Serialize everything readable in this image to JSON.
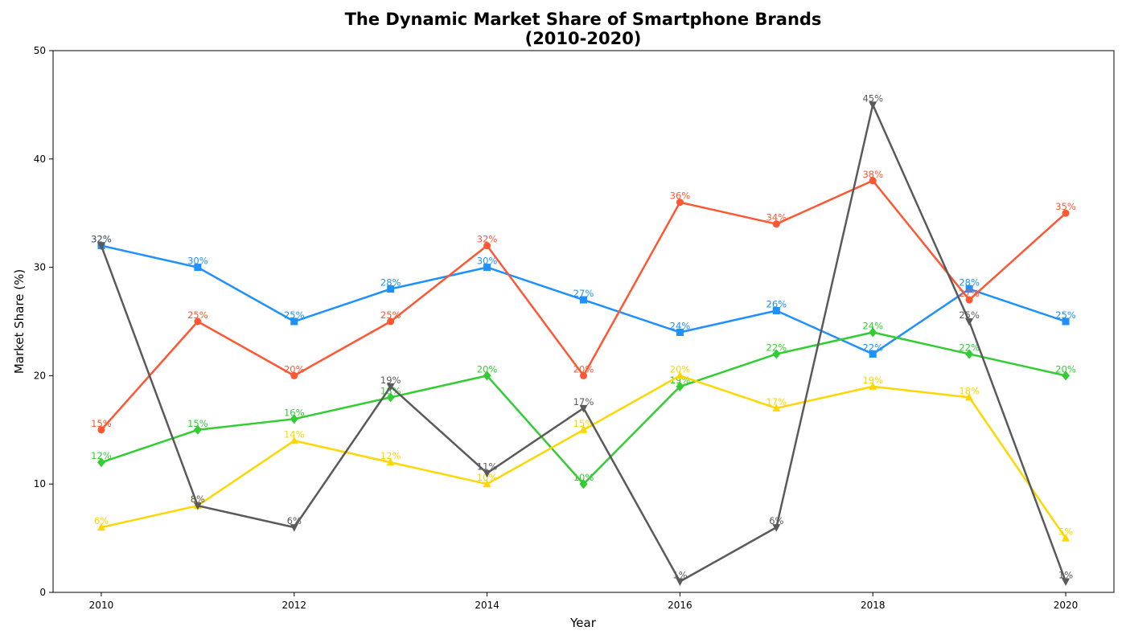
{
  "chart_data": {
    "type": "line",
    "title": "The Dynamic Market Share of Smartphone Brands",
    "subtitle": "(2010-2020)",
    "xlabel": "Year",
    "ylabel": "Market Share (%)",
    "x": [
      2010,
      2011,
      2012,
      2013,
      2014,
      2015,
      2016,
      2017,
      2018,
      2019,
      2020
    ],
    "xlim": [
      2009.5,
      2020.5
    ],
    "ylim": [
      0,
      50
    ],
    "x_ticks": [
      2010,
      2012,
      2014,
      2016,
      2018,
      2020
    ],
    "y_ticks": [
      0,
      10,
      20,
      30,
      40,
      50
    ],
    "grid": false,
    "legend": false,
    "series": [
      {
        "color": "#1E90FF",
        "marker": "square",
        "values": [
          32,
          30,
          25,
          28,
          30,
          27,
          24,
          26,
          22,
          28,
          25
        ],
        "labels": [
          "32%",
          "30%",
          "25%",
          "28%",
          "30%",
          "27%",
          "24%",
          "26%",
          "22%",
          "28%",
          "25%"
        ]
      },
      {
        "color": "#FF5733",
        "marker": "circle",
        "values": [
          15,
          25,
          20,
          25,
          32,
          20,
          36,
          34,
          38,
          27,
          35
        ],
        "labels": [
          "15%",
          "25%",
          "20%",
          "25%",
          "32%",
          "20%",
          "36%",
          "34%",
          "38%",
          "27%",
          "35%"
        ]
      },
      {
        "color": "#32CD32",
        "marker": "diamond",
        "values": [
          12,
          15,
          16,
          18,
          20,
          10,
          19,
          22,
          24,
          22,
          20
        ],
        "labels": [
          "12%",
          "15%",
          "16%",
          "18%",
          "20%",
          "10%",
          "19%",
          "22%",
          "24%",
          "22%",
          "20%"
        ]
      },
      {
        "color": "#FFD700",
        "marker": "triangle-up",
        "values": [
          6,
          8,
          14,
          12,
          10,
          15,
          20,
          17,
          19,
          18,
          5
        ],
        "labels": [
          "6%",
          "8%",
          "14%",
          "12%",
          "10%",
          "15%",
          "20%",
          "17%",
          "19%",
          "18%",
          "5%"
        ]
      },
      {
        "color": "#5A5A5A",
        "marker": "triangle-down",
        "values": [
          32,
          8,
          6,
          19,
          11,
          17,
          1,
          6,
          45,
          25,
          1
        ],
        "labels": [
          "32%",
          "8%",
          "6%",
          "19%",
          "11%",
          "17%",
          "1%",
          "6%",
          "45%",
          "25%",
          "1%"
        ]
      }
    ]
  }
}
